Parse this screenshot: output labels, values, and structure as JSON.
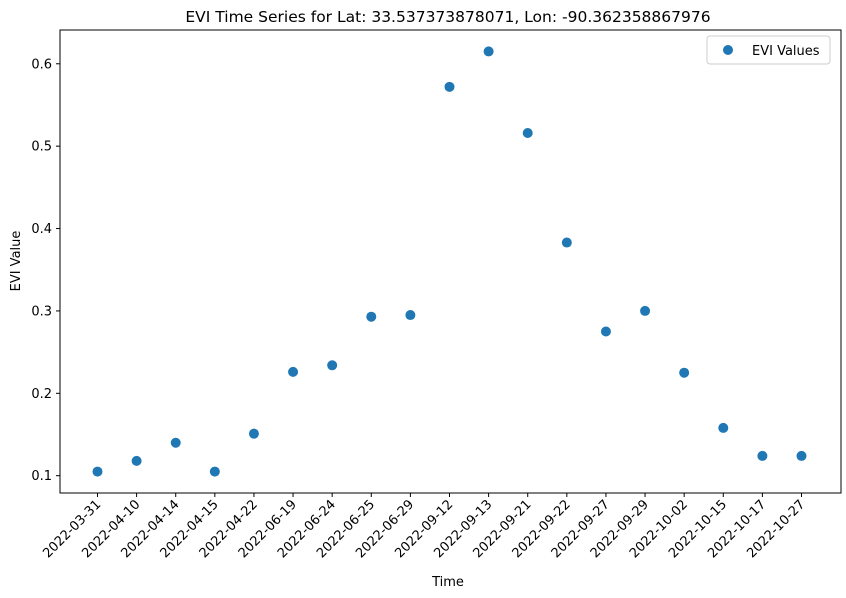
{
  "chart_data": {
    "type": "scatter",
    "title": "EVI Time Series for Lat: 33.537373878071, Lon: -90.362358867976",
    "xlabel": "Time",
    "ylabel": "EVI Value",
    "x": [
      "2022-03-31",
      "2022-04-10",
      "2022-04-14",
      "2022-04-15",
      "2022-04-22",
      "2022-06-19",
      "2022-06-24",
      "2022-06-25",
      "2022-06-29",
      "2022-09-12",
      "2022-09-13",
      "2022-09-21",
      "2022-09-22",
      "2022-09-27",
      "2022-09-29",
      "2022-10-02",
      "2022-10-15",
      "2022-10-17",
      "2022-10-27"
    ],
    "series": [
      {
        "name": "EVI Values",
        "color": "#1f77b4",
        "values": [
          0.105,
          0.118,
          0.14,
          0.105,
          0.151,
          0.226,
          0.234,
          0.293,
          0.295,
          0.572,
          0.615,
          0.516,
          0.383,
          0.275,
          0.3,
          0.225,
          0.158,
          0.124,
          0.124
        ]
      }
    ],
    "yticks": [
      0.1,
      0.2,
      0.3,
      0.4,
      0.5,
      0.6
    ],
    "ytick_labels": [
      "0.1",
      "0.2",
      "0.3",
      "0.4",
      "0.5",
      "0.6"
    ],
    "ylim": [
      0.079,
      0.641
    ],
    "grid": false,
    "legend_position": "top-right"
  }
}
